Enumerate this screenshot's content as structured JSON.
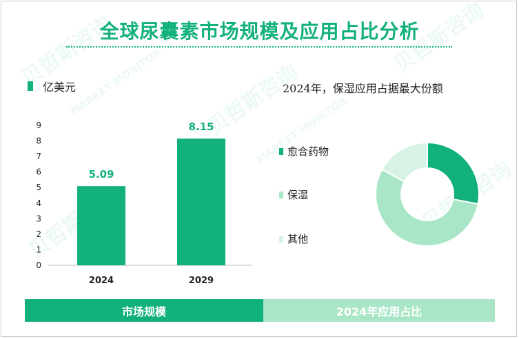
{
  "title": "全球尿囊素市场规模及应用占比分析",
  "legend_label": "亿美元",
  "right_heading": "2024年，保湿应用占据最大份额",
  "bottom_left_label": "市场规模",
  "bottom_right_label": "2024年应用占比",
  "watermark_main": "贝哲斯咨询",
  "watermark_sub": "MARKET MONITOR",
  "colors": {
    "accent": "#12b07c",
    "light": "#a9e6c8",
    "lighter": "#d6f3e5"
  },
  "chart_data": [
    {
      "type": "bar",
      "categories": [
        "2024",
        "2029"
      ],
      "values": [
        5.09,
        8.15
      ],
      "value_labels": [
        "5.09",
        "8.15"
      ],
      "series_name": "亿美元",
      "yticks": [
        "0",
        "1",
        "2",
        "3",
        "4",
        "5",
        "6",
        "7",
        "8",
        "9"
      ],
      "ylim": [
        0,
        9
      ]
    },
    {
      "type": "pie",
      "title": "2024年，保湿应用占据最大份额",
      "labels": [
        "愈合药物",
        "保湿",
        "其他"
      ],
      "values": [
        28,
        55,
        17
      ],
      "colors": [
        "#12b07c",
        "#a9e6c8",
        "#d6f3e5"
      ]
    }
  ]
}
